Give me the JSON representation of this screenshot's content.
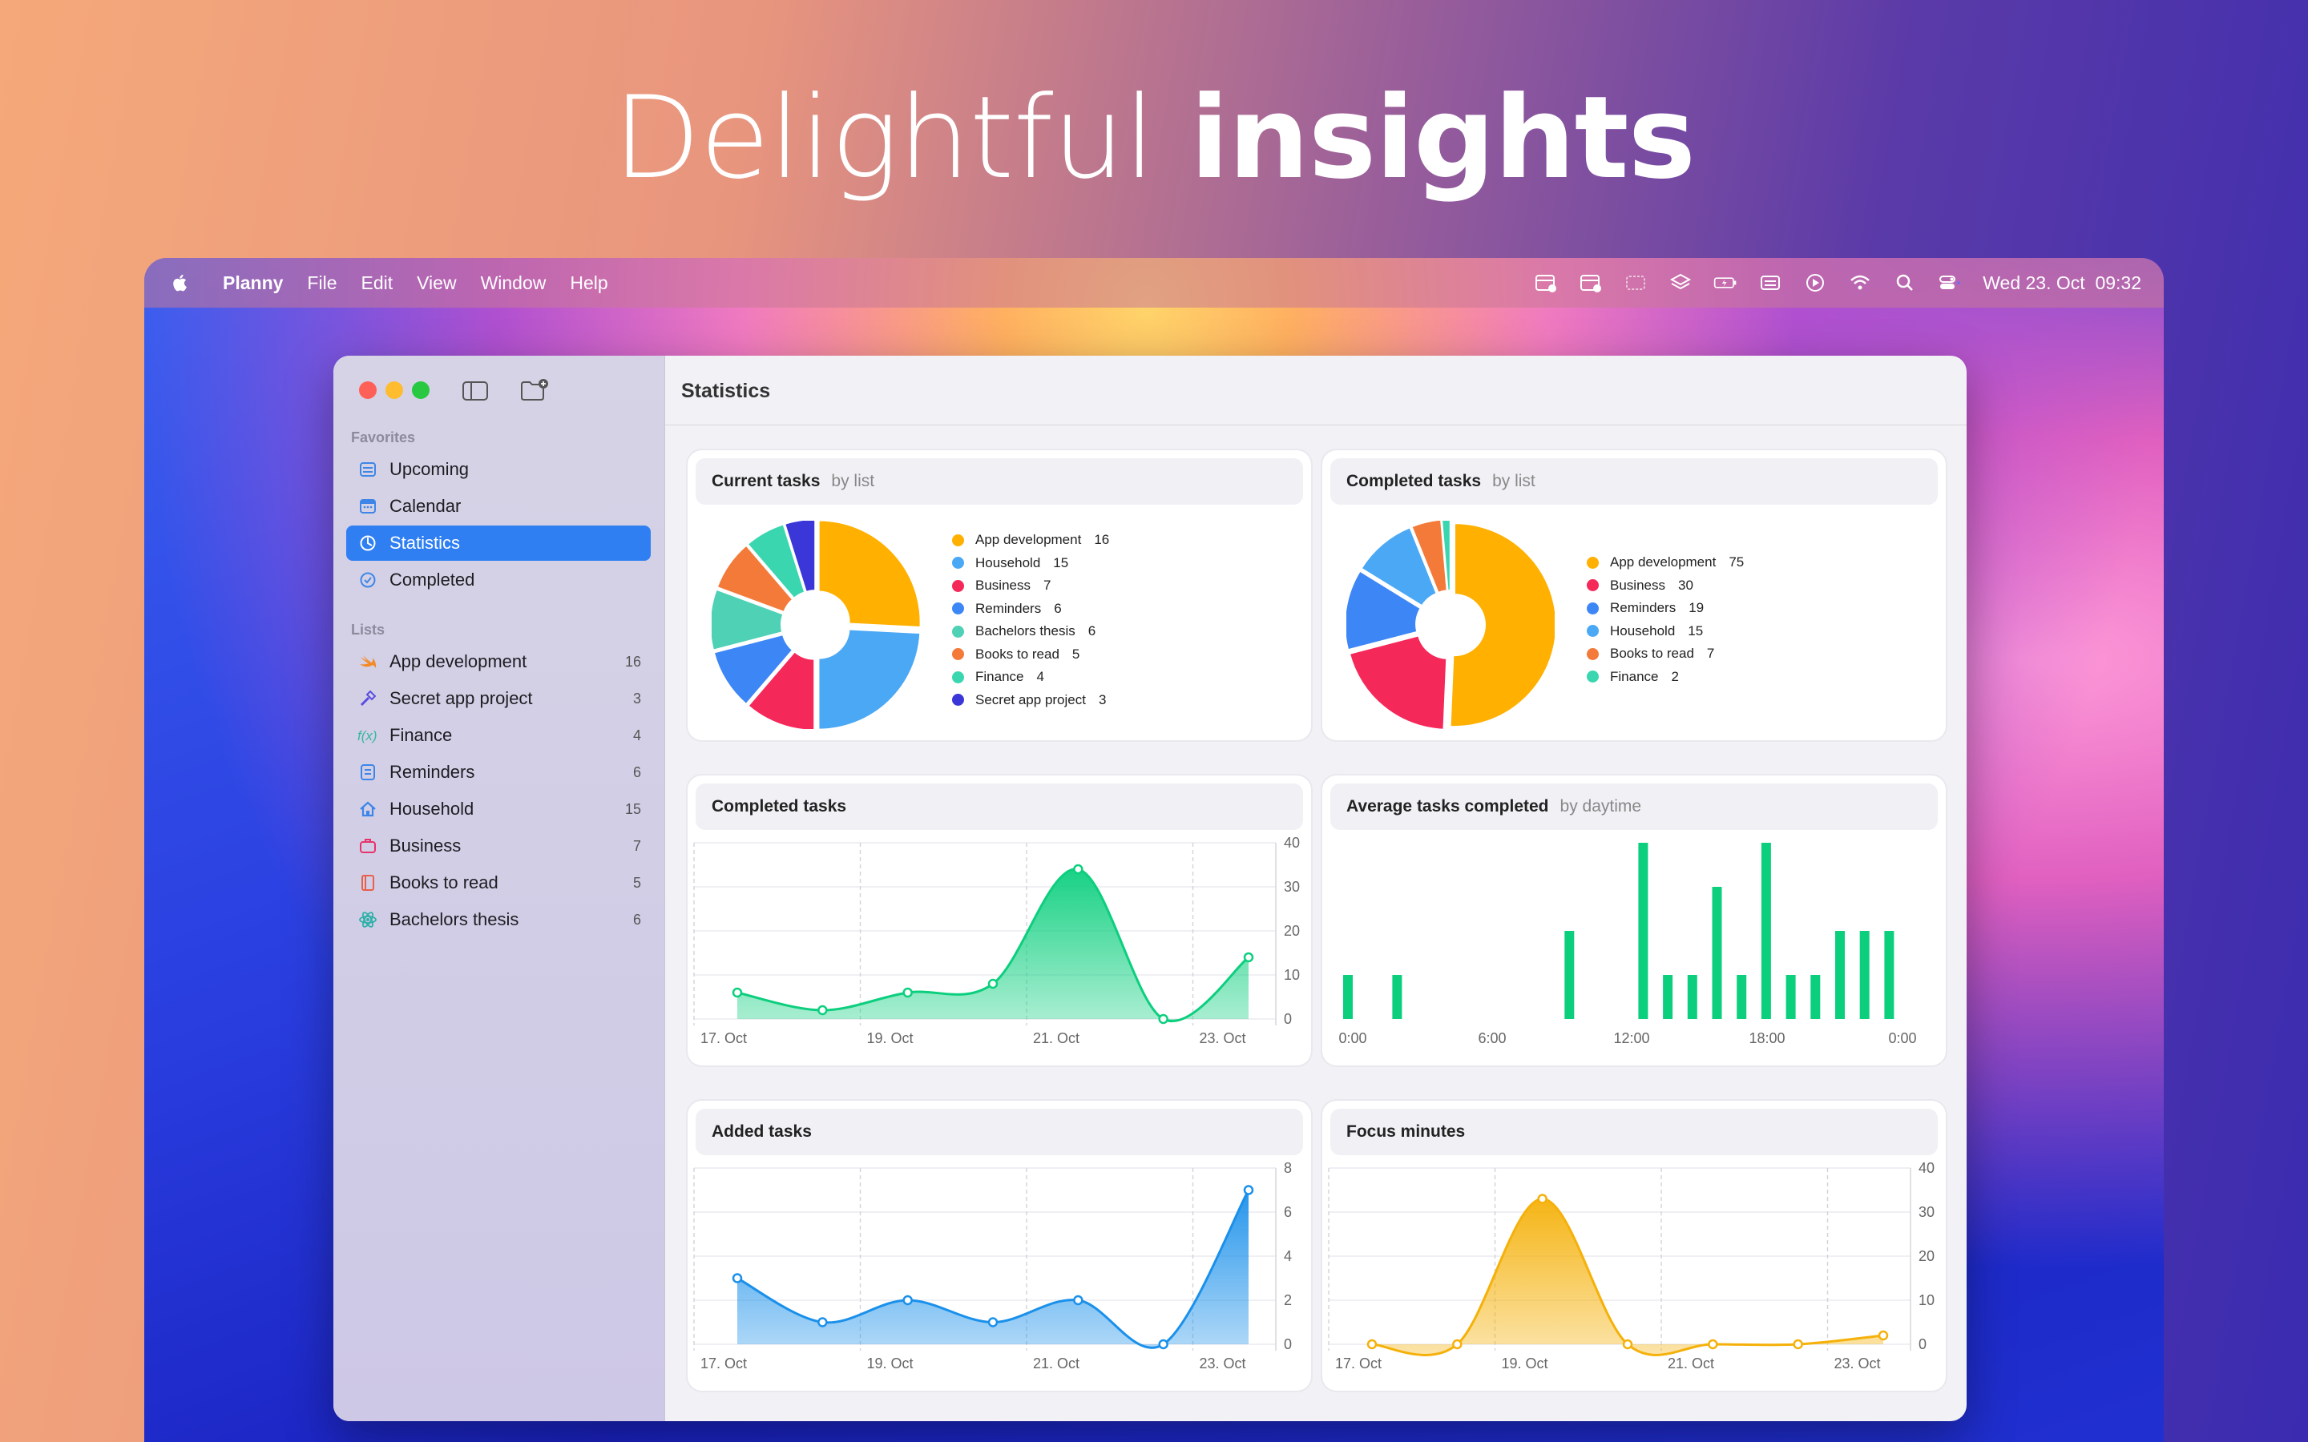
{
  "headline": {
    "light": "Delightful",
    "bold": "insights"
  },
  "menubar": {
    "app": "Planny",
    "items": [
      "File",
      "Edit",
      "View",
      "Window",
      "Help"
    ],
    "datetime": "Wed 23. Oct  09:32"
  },
  "sidebar": {
    "favorites_label": "Favorites",
    "favorites": [
      {
        "label": "Upcoming",
        "icon": "upcoming-icon"
      },
      {
        "label": "Calendar",
        "icon": "calendar-icon"
      },
      {
        "label": "Statistics",
        "icon": "statistics-icon",
        "selected": true
      },
      {
        "label": "Completed",
        "icon": "completed-icon"
      }
    ],
    "lists_label": "Lists",
    "lists": [
      {
        "label": "App development",
        "count": "16",
        "icon": "swift-icon",
        "color": "#f48a25"
      },
      {
        "label": "Secret app project",
        "count": "3",
        "icon": "hammer-icon",
        "color": "#5a4de0"
      },
      {
        "label": "Finance",
        "count": "4",
        "icon": "function-icon",
        "color": "#35b89e"
      },
      {
        "label": "Reminders",
        "count": "6",
        "icon": "list-icon",
        "color": "#3d86e8"
      },
      {
        "label": "Household",
        "count": "15",
        "icon": "house-icon",
        "color": "#3d86e8"
      },
      {
        "label": "Business",
        "count": "7",
        "icon": "briefcase-icon",
        "color": "#e8326a"
      },
      {
        "label": "Books to read",
        "count": "5",
        "icon": "book-icon",
        "color": "#e8604a"
      },
      {
        "label": "Bachelors thesis",
        "count": "6",
        "icon": "atom-icon",
        "color": "#2fb0a8"
      }
    ]
  },
  "main": {
    "title": "Statistics"
  },
  "colors": {
    "orange": "#ffb000",
    "sky": "#4aa8f5",
    "pink": "#f5285a",
    "blue": "#3d86f5",
    "teal": "#4fd1b5",
    "coral": "#f47a3a",
    "mint": "#3ad6b0",
    "indigo": "#3a36d8",
    "green": "#0ccf7e",
    "chart_blue": "#1a90ea",
    "chart_yellow": "#f5b10a"
  },
  "cards": {
    "current": {
      "title": "Current tasks",
      "subtitle": "by list"
    },
    "completed_pie": {
      "title": "Completed tasks",
      "subtitle": "by list"
    },
    "completed_line": {
      "title": "Completed tasks",
      "subtitle": ""
    },
    "average": {
      "title": "Average tasks completed",
      "subtitle": "by daytime"
    },
    "added": {
      "title": "Added tasks",
      "subtitle": ""
    },
    "focus": {
      "title": "Focus minutes",
      "subtitle": ""
    }
  },
  "chart_data": [
    {
      "type": "pie",
      "title": "Current tasks",
      "subtitle": "by list",
      "slices": [
        {
          "label": "App development",
          "value": 16,
          "color": "#ffb000"
        },
        {
          "label": "Household",
          "value": 15,
          "color": "#4aa8f5"
        },
        {
          "label": "Business",
          "value": 7,
          "color": "#f5285a"
        },
        {
          "label": "Reminders",
          "value": 6,
          "color": "#3d86f5"
        },
        {
          "label": "Bachelors thesis",
          "value": 6,
          "color": "#4fd1b5"
        },
        {
          "label": "Books to read",
          "value": 5,
          "color": "#f47a3a"
        },
        {
          "label": "Finance",
          "value": 4,
          "color": "#3ad6b0"
        },
        {
          "label": "Secret app project",
          "value": 3,
          "color": "#3a36d8"
        }
      ]
    },
    {
      "type": "pie",
      "title": "Completed tasks",
      "subtitle": "by list",
      "slices": [
        {
          "label": "App development",
          "value": 75,
          "color": "#ffb000"
        },
        {
          "label": "Business",
          "value": 30,
          "color": "#f5285a"
        },
        {
          "label": "Reminders",
          "value": 19,
          "color": "#3d86f5"
        },
        {
          "label": "Household",
          "value": 15,
          "color": "#4aa8f5"
        },
        {
          "label": "Books to read",
          "value": 7,
          "color": "#f47a3a"
        },
        {
          "label": "Finance",
          "value": 2,
          "color": "#3ad6b0"
        }
      ]
    },
    {
      "type": "area",
      "title": "Completed tasks",
      "x": [
        0,
        1,
        2,
        3,
        4,
        5,
        6
      ],
      "x_ticks": [
        "17. Oct",
        "19. Oct",
        "21. Oct",
        "23. Oct"
      ],
      "y": [
        6,
        2,
        6,
        8,
        34,
        0,
        14
      ],
      "ylim": [
        0,
        40
      ],
      "y_ticks": [
        "40",
        "30",
        "20",
        "10",
        "0"
      ],
      "color": "#0ccf7e"
    },
    {
      "type": "bar",
      "title": "Average tasks completed",
      "subtitle": "by daytime",
      "x_ticks": [
        "0:00",
        "6:00",
        "12:00",
        "18:00",
        "0:00"
      ],
      "values": [
        10,
        0,
        10,
        0,
        0,
        0,
        0,
        0,
        0,
        20,
        0,
        0,
        40,
        10,
        10,
        30,
        10,
        40,
        10,
        10,
        20,
        20,
        20,
        0
      ],
      "color": "#0ccf7e"
    },
    {
      "type": "area",
      "title": "Added tasks",
      "x": [
        0,
        1,
        2,
        3,
        4,
        5,
        6
      ],
      "x_ticks": [
        "17. Oct",
        "19. Oct",
        "21. Oct",
        "23. Oct"
      ],
      "y": [
        3,
        1,
        2,
        1,
        2,
        0,
        7
      ],
      "ylim": [
        0,
        8
      ],
      "y_ticks": [
        "8",
        "6",
        "4",
        "2",
        "0"
      ],
      "color": "#1a90ea"
    },
    {
      "type": "area",
      "title": "Focus minutes",
      "x": [
        0,
        1,
        2,
        3,
        4,
        5,
        6
      ],
      "x_ticks": [
        "17. Oct",
        "19. Oct",
        "21. Oct",
        "23. Oct"
      ],
      "y": [
        0,
        0,
        33,
        0,
        0,
        0,
        2
      ],
      "ylim": [
        0,
        40
      ],
      "y_ticks": [
        "40",
        "30",
        "20",
        "10",
        "0"
      ],
      "color": "#f5b10a"
    }
  ]
}
